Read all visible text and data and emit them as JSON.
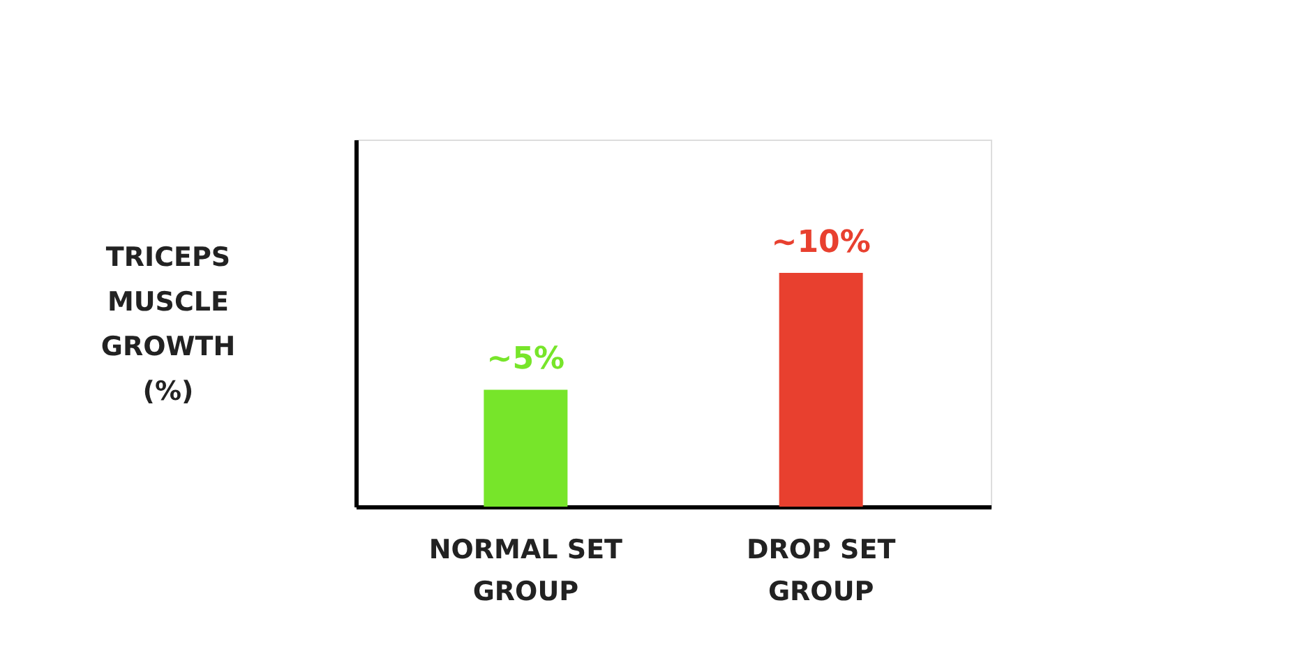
{
  "chart_data": {
    "type": "bar",
    "categories": [
      "NORMAL SET\nGROUP",
      "DROP SET\nGROUP"
    ],
    "values": [
      5,
      10
    ],
    "colors": [
      "#77e52a",
      "#e8402f"
    ],
    "value_labels": [
      "~5%",
      "~10%"
    ],
    "ylabel": "TRICEPS\nMUSCLE\nGROWTH\n(%)",
    "ylim": [
      0,
      15.7
    ],
    "tick_labels": "x",
    "grid": false
  }
}
